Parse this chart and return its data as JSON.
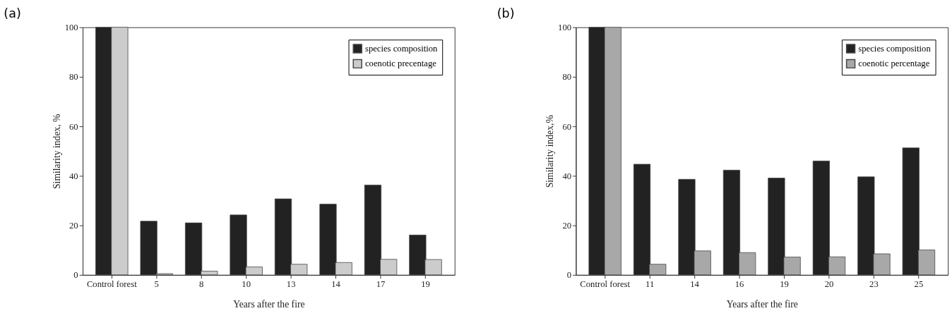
{
  "chart_data": [
    {
      "type": "bar",
      "title": "(a)",
      "xlabel": "Years after the fire",
      "ylabel": "Similarity index, %",
      "categories": [
        "Control forest",
        "5",
        "8",
        "10",
        "13",
        "14",
        "17",
        "19"
      ],
      "ylim": [
        0,
        100
      ],
      "yticks": [
        0,
        20,
        40,
        60,
        80,
        100
      ],
      "grid": false,
      "legend": "top right",
      "series": [
        {
          "name": "species composition",
          "color": "#222222",
          "values": [
            100,
            21.7,
            21.0,
            24.2,
            30.7,
            28.6,
            36.3,
            16.1
          ]
        },
        {
          "name": "coenotic precentage",
          "color": "#cccccc",
          "values": [
            100,
            0.5,
            1.5,
            3.2,
            4.3,
            5.0,
            6.3,
            6.2
          ]
        }
      ]
    },
    {
      "type": "bar",
      "title": "(b)",
      "xlabel": "Years after the fire",
      "ylabel": "Similarity index,%",
      "categories": [
        "Control forest",
        "11",
        "14",
        "16",
        "19",
        "20",
        "23",
        "25"
      ],
      "ylim": [
        0,
        100
      ],
      "yticks": [
        0,
        20,
        40,
        60,
        80,
        100
      ],
      "grid": false,
      "legend": "top right",
      "series": [
        {
          "name": "species composition",
          "color": "#222222",
          "values": [
            100,
            44.7,
            38.6,
            42.3,
            39.1,
            46.0,
            39.6,
            51.3
          ]
        },
        {
          "name": "coenotic percentage",
          "color": "#a8a8a8",
          "values": [
            100,
            4.3,
            9.7,
            9.0,
            7.2,
            7.3,
            8.5,
            10.1
          ]
        }
      ]
    }
  ]
}
